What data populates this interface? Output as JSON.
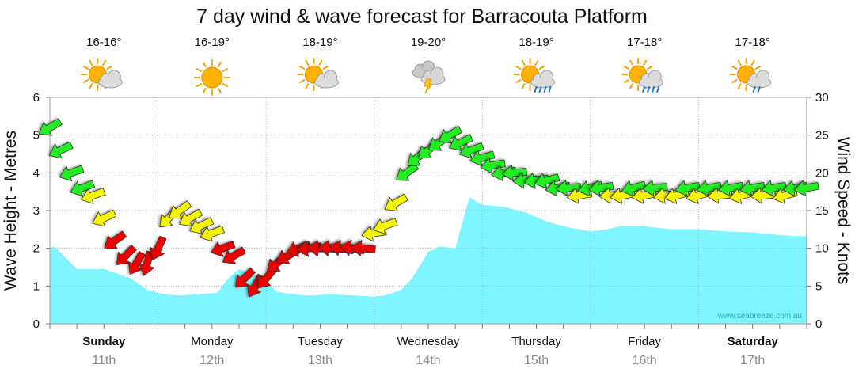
{
  "chart_data": {
    "type": "area",
    "title": "7 day wind & wave forecast for Barracouta Platform",
    "ylabel": "Wave Height - Metres",
    "y2label": "Wind Speed - Knots",
    "ylim": [
      0,
      6
    ],
    "y_ticks": [
      "0",
      "1",
      "2",
      "3",
      "4",
      "5",
      "6"
    ],
    "y2lim": [
      0,
      30
    ],
    "y2_ticks": [
      "0",
      "5",
      "10",
      "15",
      "20",
      "25",
      "30"
    ],
    "grid": true,
    "credit": "www.seabreeze.com.au",
    "days": [
      {
        "name": "Sunday",
        "date": "11th",
        "temp": "16-16°",
        "icon": "partly-cloudy-icon",
        "bold": true
      },
      {
        "name": "Monday",
        "date": "12th",
        "temp": "16-19°",
        "icon": "sunny-icon",
        "bold": false
      },
      {
        "name": "Tuesday",
        "date": "13th",
        "temp": "18-19°",
        "icon": "partly-cloudy-icon",
        "bold": false
      },
      {
        "name": "Wednesday",
        "date": "14th",
        "temp": "19-20°",
        "icon": "thunderstorm-icon",
        "bold": false
      },
      {
        "name": "Thursday",
        "date": "15th",
        "temp": "18-19°",
        "icon": "rain-showers-icon",
        "bold": false
      },
      {
        "name": "Friday",
        "date": "16th",
        "temp": "17-18°",
        "icon": "rain-showers-icon",
        "bold": false
      },
      {
        "name": "Saturday",
        "date": "17th",
        "temp": "17-18°",
        "icon": "light-showers-icon",
        "bold": true
      }
    ],
    "wave_series": {
      "name": "Wave Height",
      "color": "#7ff5ff",
      "x": [
        0,
        0.04,
        0.25,
        0.5,
        0.55,
        0.75,
        0.9,
        1.05,
        1.2,
        1.35,
        1.55,
        1.65,
        1.75,
        1.85,
        2.0,
        2.1,
        2.25,
        2.4,
        2.6,
        2.8,
        3.0,
        3.1,
        3.25,
        3.35,
        3.5,
        3.6,
        3.75,
        3.88,
        4.0,
        4.2,
        4.4,
        4.6,
        4.8,
        5.0,
        5.15,
        5.3,
        5.5,
        5.75,
        6.0,
        6.25,
        6.5,
        6.75,
        6.9,
        7.0
      ],
      "y": [
        2.0,
        2.05,
        1.45,
        1.45,
        1.4,
        1.2,
        0.9,
        0.78,
        0.75,
        0.78,
        0.82,
        1.2,
        1.45,
        1.35,
        1.1,
        0.85,
        0.78,
        0.75,
        0.78,
        0.75,
        0.72,
        0.75,
        0.9,
        1.2,
        1.9,
        2.05,
        2.0,
        3.35,
        3.15,
        3.1,
        2.95,
        2.7,
        2.55,
        2.45,
        2.5,
        2.6,
        2.58,
        2.5,
        2.5,
        2.45,
        2.42,
        2.35,
        2.32,
        2.32
      ]
    },
    "wind_series": {
      "name": "Wind",
      "units": "knots",
      "colors": {
        "strong": "#22ee22",
        "moderate": "#f5f500",
        "light": "#ee0000"
      },
      "x": [
        0.0,
        0.1,
        0.2,
        0.3,
        0.4,
        0.5,
        0.6,
        0.7,
        0.8,
        0.9,
        1.0,
        1.1,
        1.2,
        1.3,
        1.4,
        1.5,
        1.6,
        1.7,
        1.8,
        1.9,
        2.0,
        2.1,
        2.2,
        2.3,
        2.4,
        2.5,
        2.6,
        2.7,
        2.8,
        2.9,
        3.0,
        3.1,
        3.2,
        3.3,
        3.4,
        3.5,
        3.6,
        3.7,
        3.8,
        3.9,
        4.0,
        4.1,
        4.2,
        4.3,
        4.4,
        4.5,
        4.6,
        4.7,
        4.8,
        4.9,
        5.0,
        5.1,
        5.2,
        5.3,
        5.4,
        5.5,
        5.6,
        5.7,
        5.8,
        5.9,
        6.0,
        6.1,
        6.2,
        6.3,
        6.4,
        6.5,
        6.6,
        6.7,
        6.8,
        6.9,
        7.0
      ],
      "knots": [
        26,
        23,
        20,
        18,
        17,
        14,
        11,
        9,
        8,
        8,
        10,
        14,
        15,
        14,
        13,
        12,
        10,
        9,
        6,
        5,
        6,
        8,
        9,
        10,
        10,
        10,
        10,
        10,
        10,
        10,
        12,
        13,
        16,
        20,
        22,
        23,
        24,
        25,
        24,
        23,
        22,
        21,
        20,
        20,
        19,
        19,
        19,
        18,
        18,
        17,
        18,
        18,
        17,
        17,
        18,
        17,
        18,
        17,
        17,
        18,
        17,
        18,
        17,
        18,
        17,
        18,
        17,
        18,
        17,
        18,
        18
      ],
      "direction_deg": [
        60,
        65,
        70,
        70,
        70,
        65,
        55,
        45,
        30,
        15,
        25,
        45,
        55,
        60,
        65,
        70,
        70,
        60,
        45,
        30,
        40,
        50,
        60,
        70,
        80,
        90,
        95,
        100,
        100,
        95,
        80,
        70,
        60,
        55,
        50,
        50,
        55,
        60,
        65,
        70,
        75,
        80,
        80,
        85,
        85,
        80,
        75,
        80,
        85,
        80,
        75,
        80,
        85,
        80,
        75,
        80,
        85,
        80,
        75,
        80,
        75,
        80,
        85,
        80,
        75,
        80,
        85,
        80,
        75,
        80,
        80
      ]
    }
  }
}
